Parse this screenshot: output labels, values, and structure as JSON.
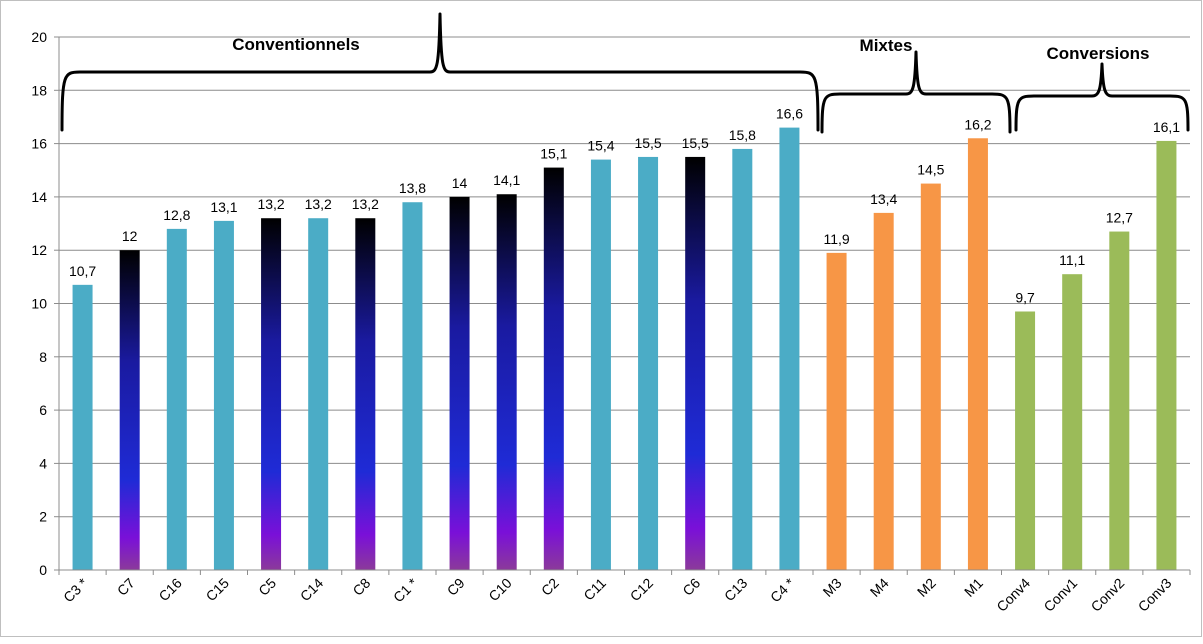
{
  "chart_data": {
    "type": "bar",
    "categories": [
      "C3 *",
      "C7",
      "C16",
      "C15",
      "C5",
      "C14",
      "C8",
      "C1 *",
      "C9",
      "C10",
      "C2",
      "C11",
      "C12",
      "C6",
      "C13",
      "C4 *",
      "M3",
      "M4",
      "M2",
      "M1",
      "Conv4",
      "Conv1",
      "Conv2",
      "Conv3"
    ],
    "values": [
      10.7,
      12,
      12.8,
      13.1,
      13.2,
      13.2,
      13.2,
      13.8,
      14,
      14.1,
      15.1,
      15.4,
      15.5,
      15.5,
      15.8,
      16.6,
      11.9,
      13.4,
      14.5,
      16.2,
      9.7,
      11.1,
      12.7,
      16.1
    ],
    "data_labels": [
      "10,7",
      "12",
      "12,8",
      "13,1",
      "13,2",
      "13,2",
      "13,2",
      "13,8",
      "14",
      "14,1",
      "15,1",
      "15,4",
      "15,5",
      "15,5",
      "15,8",
      "16,6",
      "11,9",
      "13,4",
      "14,5",
      "16,2",
      "9,7",
      "11,1",
      "12,7",
      "16,1"
    ],
    "styles": [
      "teal",
      "dark",
      "teal",
      "teal",
      "dark",
      "teal",
      "dark",
      "teal",
      "dark",
      "dark",
      "dark",
      "teal",
      "teal",
      "dark",
      "teal",
      "teal",
      "orange",
      "orange",
      "orange",
      "orange",
      "green",
      "green",
      "green",
      "green"
    ],
    "colors": {
      "teal": "#4bacc6",
      "orange": "#f79646",
      "green": "#9bbb59",
      "dark_gradient": [
        "#000000",
        "#1a1aa0",
        "#1f2bd6",
        "#7a10d8",
        "#8b3a9a"
      ]
    },
    "groups": [
      {
        "label": "Conventionnels",
        "from": 0,
        "to": 15
      },
      {
        "label": "Mixtes",
        "from": 16,
        "to": 19
      },
      {
        "label": "Conversions",
        "from": 20,
        "to": 23
      }
    ],
    "ylim": [
      0,
      20
    ],
    "yticks": [
      0,
      2,
      4,
      6,
      8,
      10,
      12,
      14,
      16,
      18,
      20
    ],
    "grid": true,
    "title": "",
    "xlabel": "",
    "ylabel": ""
  }
}
